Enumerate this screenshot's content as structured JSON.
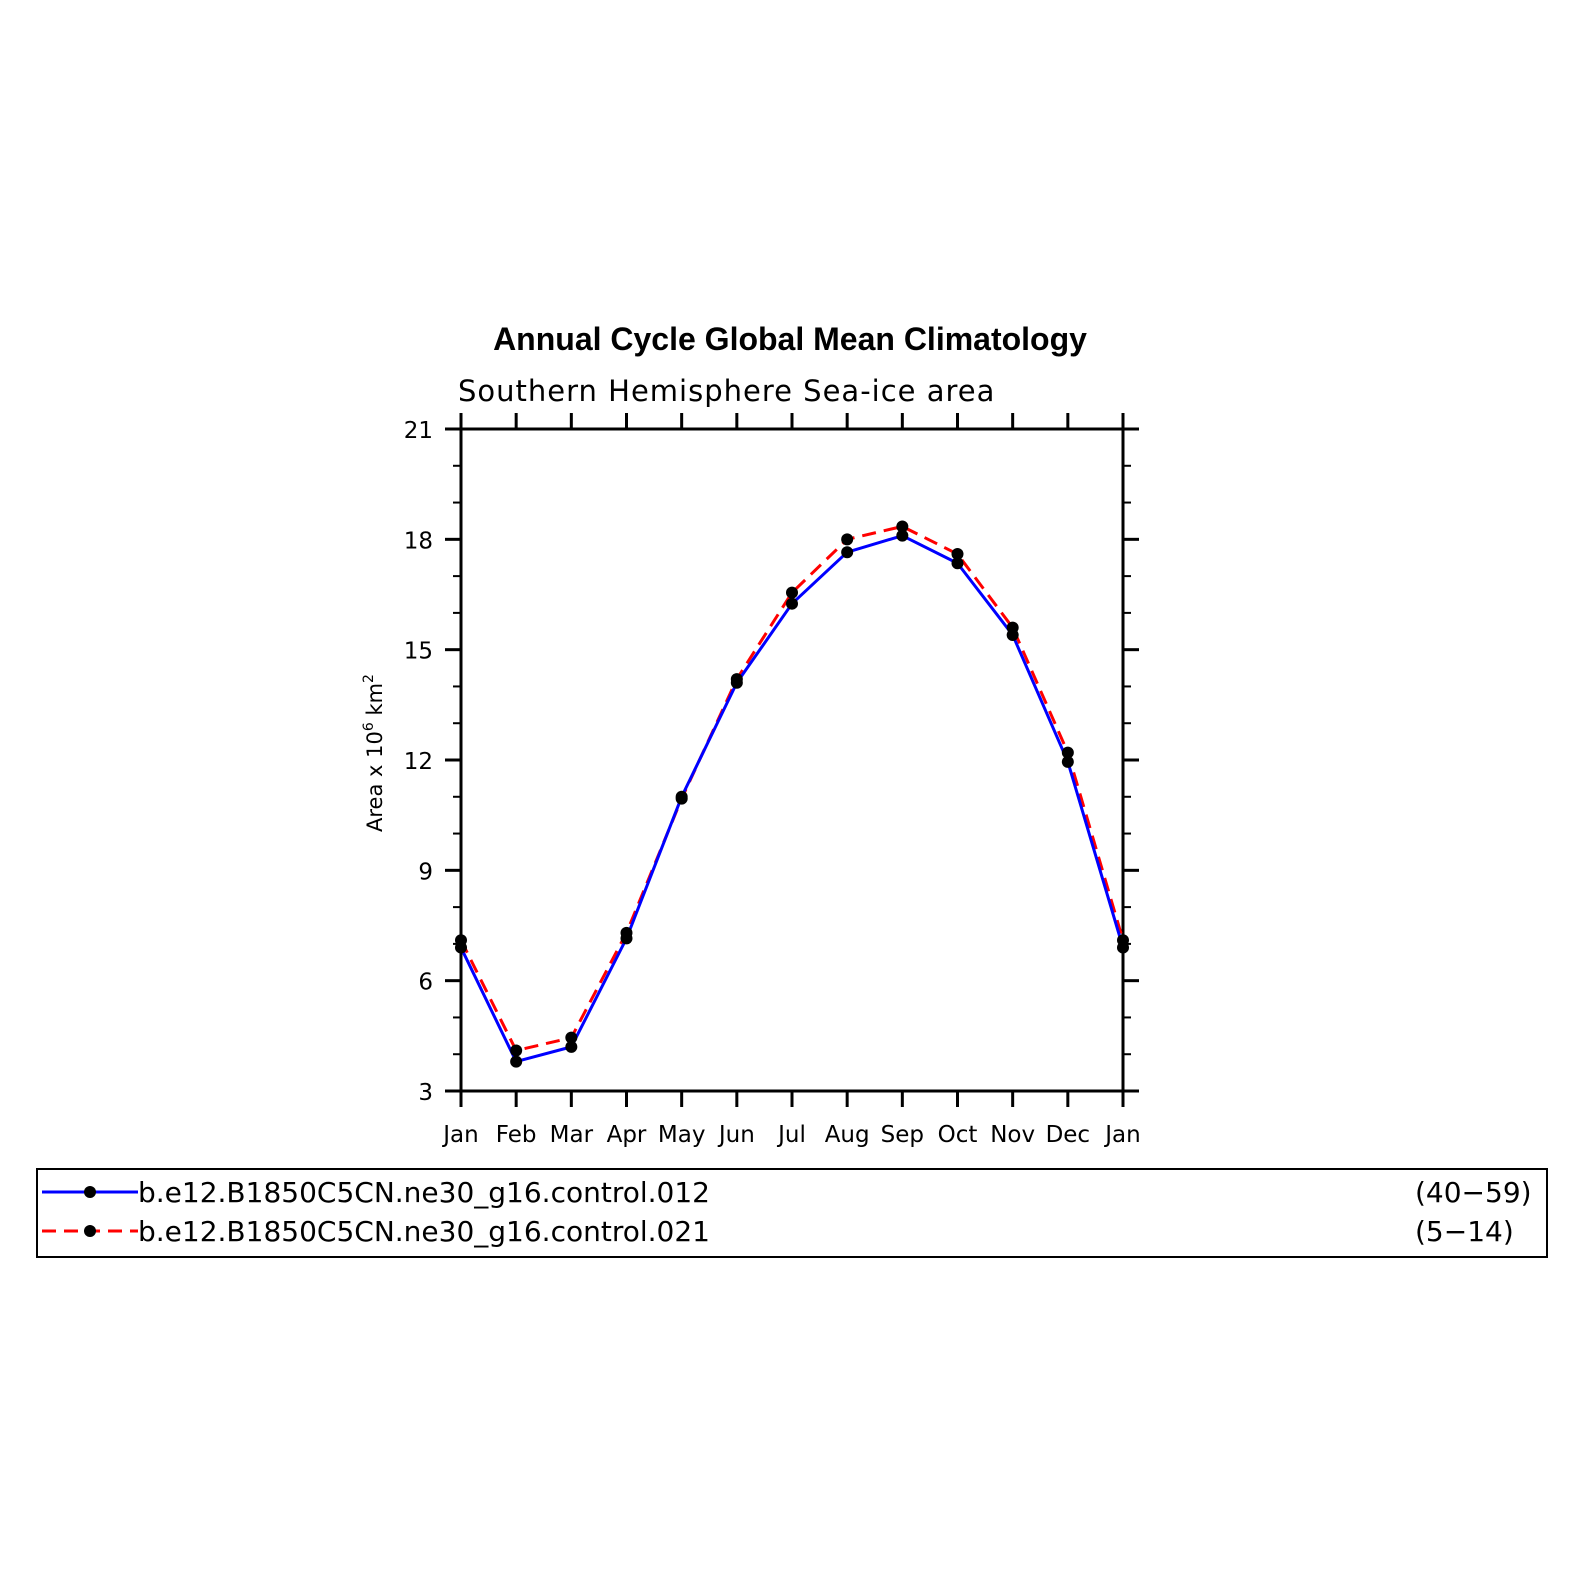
{
  "chart_data": {
    "type": "line",
    "title": "Annual Cycle Global Mean Climatology",
    "subtitle": "Southern Hemisphere Sea-ice area",
    "ylabel": {
      "prefix": "Area x 10",
      "exp1": "6",
      "mid": " km",
      "exp2": "2"
    },
    "xlabel": "",
    "categories": [
      "Jan",
      "Feb",
      "Mar",
      "Apr",
      "May",
      "Jun",
      "Jul",
      "Aug",
      "Sep",
      "Oct",
      "Nov",
      "Dec",
      "Jan"
    ],
    "ylim": [
      3,
      21
    ],
    "yticks": [
      3,
      6,
      9,
      12,
      15,
      18,
      21
    ],
    "yminor_step": 1,
    "grid": false,
    "legend_position": "bottom",
    "series": [
      {
        "name": "b.e12.B1850C5CN.ne30_g16.control.012",
        "years": "(40−59)",
        "color": "#0000ff",
        "dash": "solid",
        "values": [
          6.9,
          3.8,
          4.2,
          7.15,
          11.0,
          14.1,
          16.25,
          17.65,
          18.1,
          17.35,
          15.4,
          11.95,
          6.9
        ]
      },
      {
        "name": "b.e12.B1850C5CN.ne30_g16.control.021",
        "years": "(5−14)",
        "color": "#ff0000",
        "dash": "dashed",
        "values": [
          7.1,
          4.1,
          4.45,
          7.3,
          10.95,
          14.2,
          16.55,
          18.0,
          18.35,
          17.6,
          15.6,
          12.2,
          7.1
        ]
      }
    ]
  }
}
